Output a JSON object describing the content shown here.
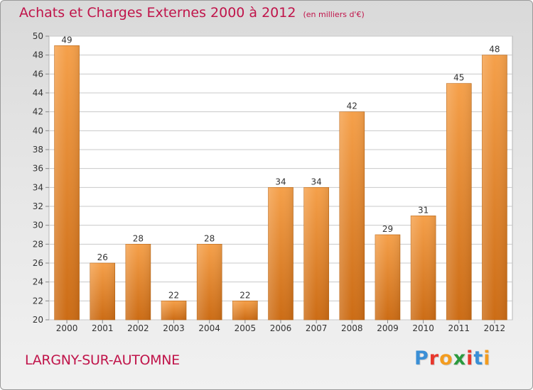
{
  "header": {
    "title": "Achats et Charges Externes 2000 à 2012",
    "subtitle": "(en milliers d'€)"
  },
  "footer": {
    "location": "LARGNY-SUR-AUTOMNE",
    "logo": "Proxiti",
    "logo_colors": [
      "#3a8fd6",
      "#e8372c",
      "#f39c1f",
      "#2b9a3e",
      "#e8372c",
      "#3a8fd6",
      "#f39c1f"
    ]
  },
  "colors": {
    "title": "#c0144a",
    "bar_light": "#f5a04a",
    "bar_dark": "#cc6c15",
    "grid": "#c8c8c8",
    "label": "#333333"
  },
  "chart_data": {
    "type": "bar",
    "title": "Achats et Charges Externes 2000 à 2012",
    "subtitle": "(en milliers d'€)",
    "categories": [
      "2000",
      "2001",
      "2002",
      "2003",
      "2004",
      "2005",
      "2006",
      "2007",
      "2008",
      "2009",
      "2010",
      "2011",
      "2012"
    ],
    "values": [
      49,
      26,
      28,
      22,
      28,
      22,
      34,
      34,
      42,
      29,
      31,
      45,
      48
    ],
    "ylim": [
      20,
      50
    ],
    "yticks": [
      20,
      22,
      24,
      26,
      28,
      30,
      32,
      34,
      36,
      38,
      40,
      42,
      44,
      46,
      48,
      50
    ],
    "xlabel": "",
    "ylabel": "",
    "grid": true,
    "data_labels": true
  }
}
